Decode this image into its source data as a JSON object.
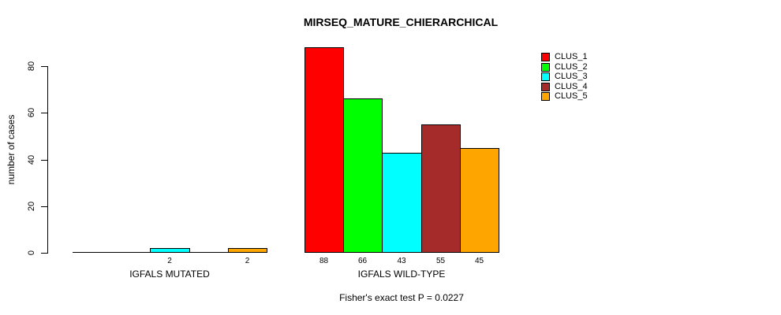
{
  "chart_data": {
    "type": "bar",
    "title": "MIRSEQ_MATURE_CHIERARCHICAL",
    "ylabel": "number of cases",
    "xlabel": "",
    "ylim": [
      0,
      88
    ],
    "yticks": [
      0,
      20,
      40,
      60,
      80
    ],
    "grid": false,
    "legend_position": "top-right",
    "caption": "Fisher's exact test P = 0.0227",
    "series": [
      {
        "name": "CLUS_1",
        "color": "#FF0000"
      },
      {
        "name": "CLUS_2",
        "color": "#00FF00"
      },
      {
        "name": "CLUS_3",
        "color": "#00FFFF"
      },
      {
        "name": "CLUS_4",
        "color": "#A52A2A"
      },
      {
        "name": "CLUS_5",
        "color": "#FFA500"
      }
    ],
    "groups": [
      {
        "label": "IGFALS MUTATED",
        "values": [
          0,
          0,
          2,
          0,
          2
        ]
      },
      {
        "label": "IGFALS WILD-TYPE",
        "values": [
          88,
          66,
          43,
          55,
          45
        ]
      }
    ]
  },
  "colors": {
    "background": "#FFFFFF",
    "axis": "#000000",
    "text": "#000000"
  }
}
